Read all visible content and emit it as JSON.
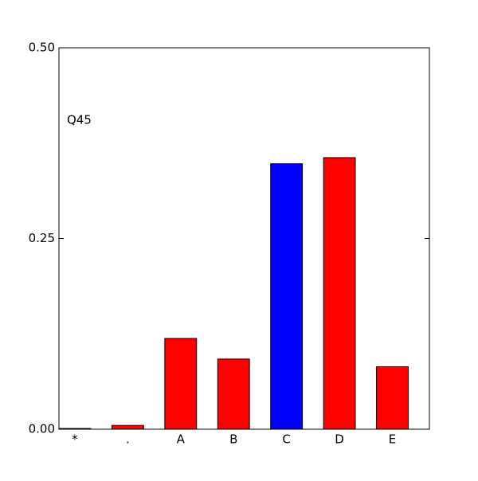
{
  "chart_data": {
    "type": "bar",
    "annotation": "Q45",
    "categories": [
      "*",
      ".",
      "A",
      "B",
      "C",
      "D",
      "E"
    ],
    "values": [
      0.001,
      0.005,
      0.119,
      0.092,
      0.348,
      0.356,
      0.082
    ],
    "colors": [
      "#ff0000",
      "#ff0000",
      "#ff0000",
      "#ff0000",
      "#0000ff",
      "#ff0000",
      "#ff0000"
    ],
    "ylim": [
      0,
      0.5
    ],
    "yticks": [
      {
        "value": 0,
        "label": "0.00"
      },
      {
        "value": 0.25,
        "label": "0.25"
      },
      {
        "value": 0.5,
        "label": "0.50"
      }
    ],
    "grid": false
  }
}
